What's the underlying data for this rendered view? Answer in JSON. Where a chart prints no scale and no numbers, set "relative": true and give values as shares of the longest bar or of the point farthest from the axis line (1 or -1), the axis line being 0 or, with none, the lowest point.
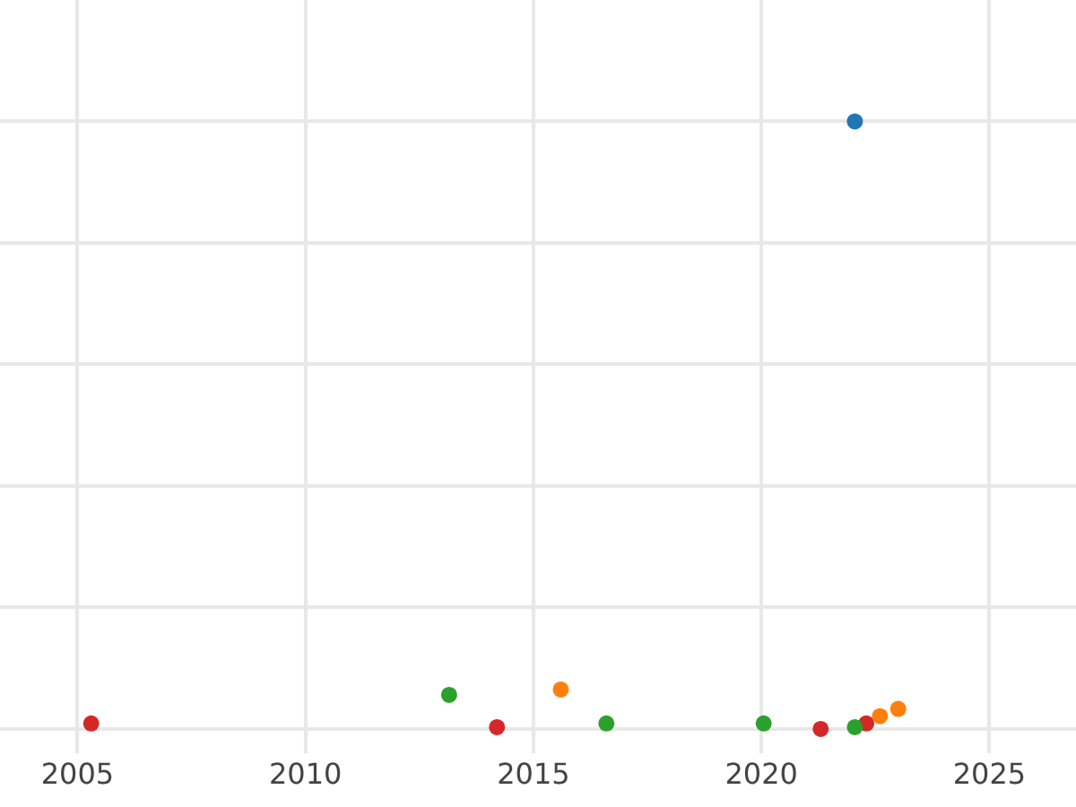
{
  "chart_data": {
    "type": "scatter",
    "relative": true,
    "grid": true,
    "marker": "circle",
    "tick_labels": "x",
    "xlim": [
      2003.3,
      2026.9
    ],
    "xticks": [
      2005,
      2010,
      2015,
      2020,
      2025
    ],
    "series": [
      {
        "color": "#d62728",
        "x": [
          2005.3,
          2014.2,
          2021.3,
          2022.3
        ],
        "values": [
          0.009,
          0.003,
          0,
          0.009
        ]
      },
      {
        "color": "#2ca02c",
        "x": [
          2013.15,
          2016.6,
          2020.05,
          2022.05
        ],
        "values": [
          0.056,
          0.009,
          0.009,
          0.003
        ]
      },
      {
        "color": "#ff7f0e",
        "x": [
          2015.6,
          2022.6,
          2023.0
        ],
        "values": [
          0.065,
          0.021,
          0.033
        ]
      },
      {
        "color": "#1f77b4",
        "x": [
          2022.05
        ],
        "values": [
          1
        ]
      }
    ]
  }
}
